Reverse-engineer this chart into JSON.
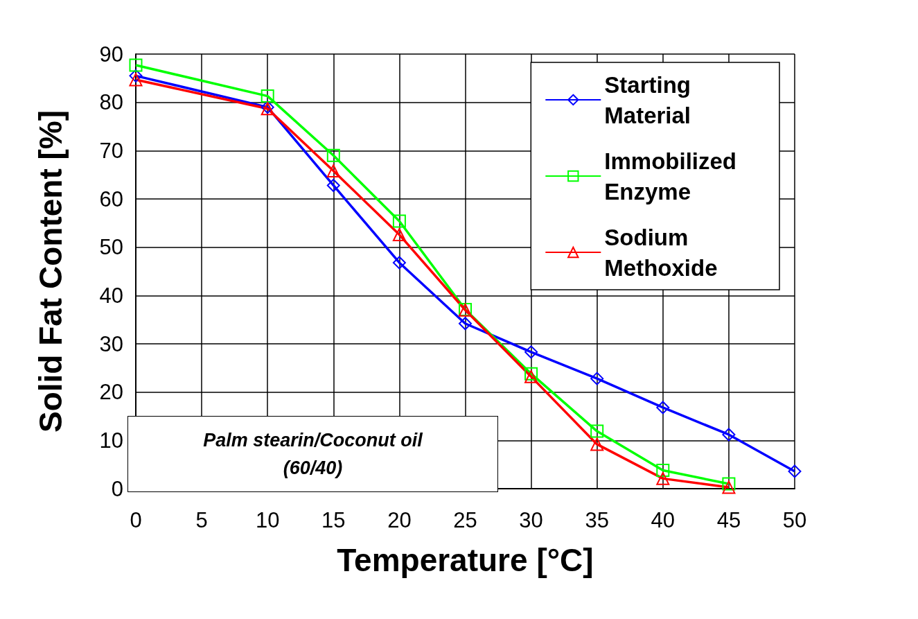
{
  "chart_data": {
    "type": "line",
    "xlabel": "Temperature [°C]",
    "ylabel": "Solid Fat Content [%]",
    "x": [
      0,
      10,
      15,
      20,
      25,
      30,
      35,
      40,
      45,
      50
    ],
    "series": [
      {
        "name": "Starting Material",
        "color": "#0000ff",
        "marker": "diamond",
        "values": [
          85.5,
          79,
          62.8,
          46.8,
          34.2,
          28.3,
          22.8,
          16.8,
          11.2,
          3.6
        ]
      },
      {
        "name": "Immobilized Enzyme",
        "color": "#00ff00",
        "marker": "square",
        "values": [
          87.7,
          81.3,
          69,
          55.4,
          37.1,
          23.8,
          11.9,
          3.8,
          1,
          null
        ]
      },
      {
        "name": "Sodium Methoxide",
        "color": "#ff0000",
        "marker": "triangle",
        "values": [
          84.7,
          78.7,
          65.8,
          52.6,
          37,
          23.2,
          9.2,
          2.1,
          0.3,
          null
        ]
      }
    ],
    "xlim": [
      0,
      50
    ],
    "xticks": [
      0,
      5,
      10,
      15,
      20,
      25,
      30,
      35,
      40,
      45,
      50
    ],
    "ylim": [
      0,
      90
    ],
    "yticks": [
      0,
      10,
      20,
      30,
      40,
      50,
      60,
      70,
      80,
      90
    ],
    "grid": true,
    "legend": "top right",
    "line_style": "solid",
    "annotations": [
      "Palm stearin/Coconut oil\n(60/40)"
    ]
  }
}
